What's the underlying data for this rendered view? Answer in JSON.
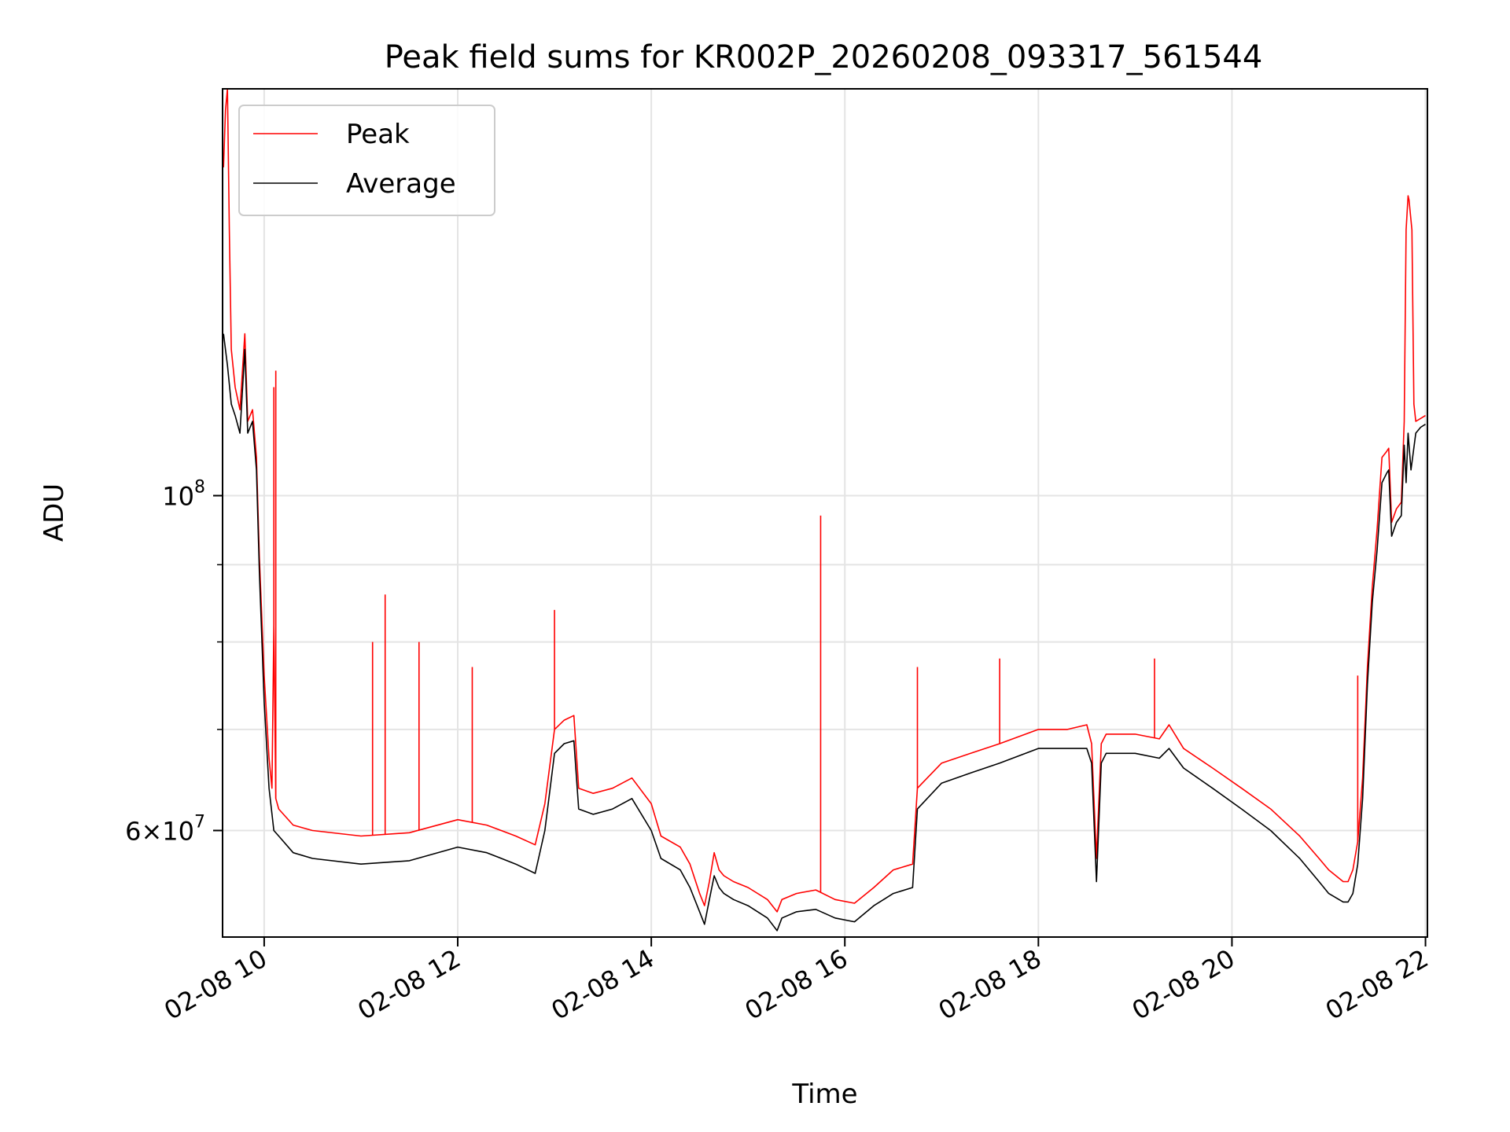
{
  "chart_data": {
    "type": "line",
    "title": "Peak field sums for KR002P_20260208_093317_561544",
    "xlabel": "Time",
    "ylabel": "ADU",
    "x_units": "hours since 2026-02-08 00:00",
    "xlim": [
      9.57,
      22.02
    ],
    "ylim": [
      51000000,
      186000000
    ],
    "yscale": "log",
    "grid": true,
    "legend_loc": "upper left",
    "x_ticks": [
      {
        "value": 10,
        "label": "02-08 10"
      },
      {
        "value": 12,
        "label": "02-08 12"
      },
      {
        "value": 14,
        "label": "02-08 14"
      },
      {
        "value": 16,
        "label": "02-08 16"
      },
      {
        "value": 18,
        "label": "02-08 18"
      },
      {
        "value": 20,
        "label": "02-08 20"
      },
      {
        "value": 22,
        "label": "02-08 22"
      }
    ],
    "y_major_ticks": [
      {
        "value": 100000000,
        "base": "10",
        "exp": "8",
        "mult": ""
      },
      {
        "value": 60000000,
        "base": "10",
        "exp": "7",
        "mult": "6×"
      }
    ],
    "y_minor_ticks": [
      60000000,
      70000000,
      80000000,
      90000000,
      100000000
    ],
    "series": [
      {
        "name": "Average",
        "color": "#000000",
        "x": [
          9.58,
          9.62,
          9.66,
          9.7,
          9.75,
          9.8,
          9.83,
          9.88,
          9.92,
          9.95,
          10.0,
          10.05,
          10.1,
          10.15,
          10.3,
          10.5,
          11.0,
          11.5,
          12.0,
          12.3,
          12.6,
          12.8,
          12.9,
          13.0,
          13.1,
          13.2,
          13.25,
          13.4,
          13.6,
          13.8,
          14.0,
          14.1,
          14.3,
          14.4,
          14.5,
          14.55,
          14.6,
          14.65,
          14.7,
          14.75,
          14.85,
          15.0,
          15.2,
          15.3,
          15.35,
          15.5,
          15.7,
          15.9,
          16.1,
          16.3,
          16.5,
          16.7,
          16.75,
          16.8,
          17.0,
          17.3,
          17.6,
          18.0,
          18.3,
          18.5,
          18.55,
          18.6,
          18.65,
          18.7,
          18.75,
          19.0,
          19.25,
          19.35,
          19.5,
          19.8,
          20.1,
          20.4,
          20.7,
          20.9,
          21.0,
          21.15,
          21.2,
          21.25,
          21.3,
          21.35,
          21.4,
          21.45,
          21.5,
          21.55,
          21.6,
          21.62,
          21.65,
          21.7,
          21.75,
          21.78,
          21.8,
          21.82,
          21.85,
          21.9,
          21.95,
          22.0
        ],
        "values": [
          128000000,
          122000000,
          115000000,
          113000000,
          110000000,
          125000000,
          110000000,
          112000000,
          104000000,
          89000000,
          73000000,
          64000000,
          60000000,
          59500000,
          58000000,
          57500000,
          57000000,
          57300000,
          58500000,
          58000000,
          57000000,
          56200000,
          60000000,
          67500000,
          68500000,
          68800000,
          62000000,
          61500000,
          62000000,
          63000000,
          60000000,
          57500000,
          56500000,
          55000000,
          53000000,
          52000000,
          54000000,
          56000000,
          55000000,
          54500000,
          54000000,
          53500000,
          52500000,
          51500000,
          52500000,
          53000000,
          53200000,
          52500000,
          52200000,
          53500000,
          54500000,
          55000000,
          62000000,
          62500000,
          64500000,
          65500000,
          66500000,
          68000000,
          68000000,
          68000000,
          66500000,
          55500000,
          66500000,
          67500000,
          67500000,
          67500000,
          67000000,
          68000000,
          66000000,
          64000000,
          62000000,
          60000000,
          57500000,
          55500000,
          54500000,
          53800000,
          53800000,
          54500000,
          57000000,
          63000000,
          75000000,
          85000000,
          92000000,
          102000000,
          103500000,
          104000000,
          94000000,
          96000000,
          97000000,
          108000000,
          102000000,
          110000000,
          104000000,
          110000000,
          111000000,
          111500000
        ]
      },
      {
        "name": "Peak",
        "color": "#ff0000",
        "x": [
          9.58,
          9.6,
          9.62,
          9.64,
          9.66,
          9.7,
          9.75,
          9.8,
          9.83,
          9.88,
          9.92,
          9.95,
          10.0,
          10.05,
          10.08,
          10.1,
          10.12,
          10.15,
          10.3,
          10.5,
          11.0,
          11.5,
          12.0,
          12.3,
          12.6,
          12.8,
          12.9,
          13.0,
          13.1,
          13.2,
          13.25,
          13.4,
          13.6,
          13.8,
          14.0,
          14.1,
          14.3,
          14.4,
          14.5,
          14.55,
          14.6,
          14.65,
          14.7,
          14.75,
          14.85,
          15.0,
          15.2,
          15.3,
          15.35,
          15.5,
          15.7,
          15.9,
          16.1,
          16.3,
          16.5,
          16.7,
          16.75,
          16.8,
          17.0,
          17.3,
          17.6,
          18.0,
          18.3,
          18.5,
          18.55,
          18.6,
          18.65,
          18.7,
          18.75,
          19.0,
          19.25,
          19.35,
          19.5,
          19.8,
          20.1,
          20.4,
          20.7,
          20.9,
          21.0,
          21.15,
          21.2,
          21.25,
          21.3,
          21.35,
          21.4,
          21.45,
          21.5,
          21.55,
          21.6,
          21.62,
          21.65,
          21.7,
          21.75,
          21.78,
          21.8,
          21.82,
          21.83,
          21.86,
          21.88,
          21.9,
          21.95,
          22.0
        ],
        "values": [
          165000000,
          180000000,
          186000000,
          150000000,
          125000000,
          118000000,
          114000000,
          128000000,
          112000000,
          114000000,
          106000000,
          91000000,
          76000000,
          67000000,
          64000000,
          82000000,
          63000000,
          62000000,
          60500000,
          60000000,
          59500000,
          59800000,
          61000000,
          60500000,
          59500000,
          58700000,
          62500000,
          70000000,
          71000000,
          71500000,
          64000000,
          63500000,
          64000000,
          65000000,
          62500000,
          59500000,
          58500000,
          57000000,
          54500000,
          53500000,
          55500000,
          58000000,
          56500000,
          56000000,
          55500000,
          55000000,
          54000000,
          53000000,
          54000000,
          54500000,
          54800000,
          54000000,
          53700000,
          55000000,
          56500000,
          57000000,
          64000000,
          64500000,
          66500000,
          67500000,
          68500000,
          70000000,
          70000000,
          70500000,
          68500000,
          57500000,
          68500000,
          69500000,
          69500000,
          69500000,
          69000000,
          70500000,
          68000000,
          66000000,
          64000000,
          62000000,
          59500000,
          57500000,
          56500000,
          55500000,
          55500000,
          56500000,
          59000000,
          65000000,
          77000000,
          87000000,
          95000000,
          106000000,
          107000000,
          107500000,
          96000000,
          98000000,
          99000000,
          112000000,
          150000000,
          158000000,
          157000000,
          150000000,
          115000000,
          112000000,
          112500000,
          113000000
        ]
      }
    ],
    "spikes": [
      {
        "series": "Peak",
        "x": 10.1,
        "value": 118000000
      },
      {
        "series": "Peak",
        "x": 10.12,
        "value": 121000000
      },
      {
        "series": "Peak",
        "x": 11.12,
        "value": 80000000
      },
      {
        "series": "Peak",
        "x": 11.25,
        "value": 86000000
      },
      {
        "series": "Peak",
        "x": 11.6,
        "value": 80000000
      },
      {
        "series": "Peak",
        "x": 12.15,
        "value": 77000000
      },
      {
        "series": "Peak",
        "x": 13.0,
        "value": 84000000
      },
      {
        "series": "Peak",
        "x": 15.75,
        "value": 97000000
      },
      {
        "series": "Peak",
        "x": 16.75,
        "value": 77000000
      },
      {
        "series": "Peak",
        "x": 17.6,
        "value": 78000000
      },
      {
        "series": "Peak",
        "x": 19.2,
        "value": 78000000
      },
      {
        "series": "Peak",
        "x": 21.3,
        "value": 76000000
      }
    ]
  },
  "legend": {
    "items": [
      {
        "label": "Peak",
        "color": "#ff0000"
      },
      {
        "label": "Average",
        "color": "#000000"
      }
    ]
  }
}
